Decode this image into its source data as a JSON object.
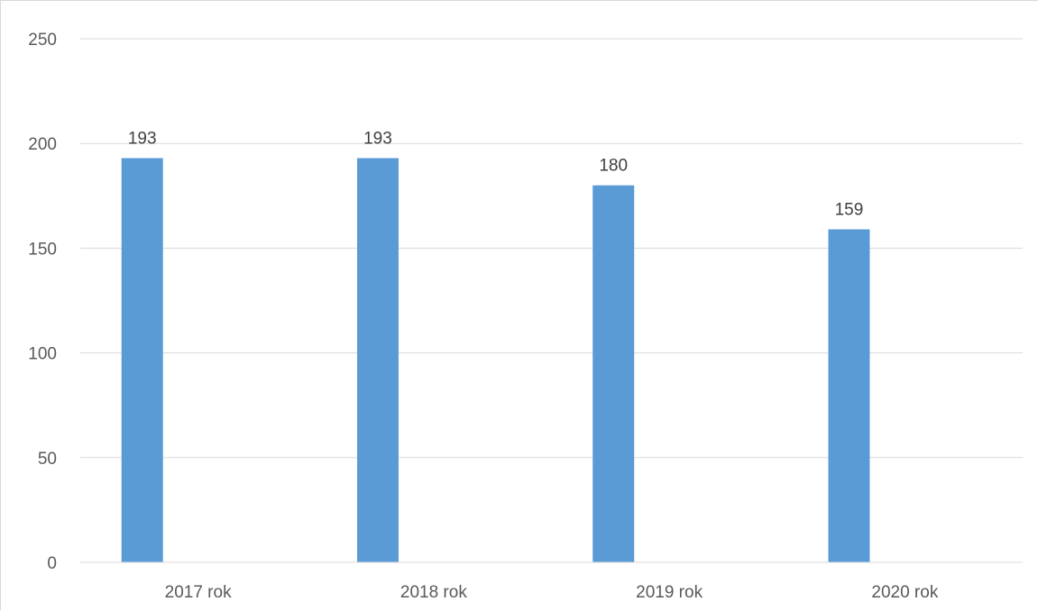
{
  "chart_data": {
    "type": "bar",
    "categories": [
      "2017 rok",
      "2018 rok",
      "2019 rok",
      "2020 rok"
    ],
    "values": [
      193,
      193,
      180,
      159
    ],
    "data_labels": [
      "193",
      "193",
      "180",
      "159"
    ],
    "title": "",
    "xlabel": "",
    "ylabel": "",
    "ylim": [
      0,
      250
    ],
    "yticks": [
      0,
      50,
      100,
      150,
      200,
      250
    ],
    "ytick_labels": [
      "0",
      "50",
      "100",
      "150",
      "200",
      "250"
    ],
    "grid": true,
    "legend": "none",
    "colors": {
      "bar": "#5b9bd5",
      "grid": "#d9d9d9",
      "axis": "#d9d9d9",
      "text": "#595959"
    }
  }
}
